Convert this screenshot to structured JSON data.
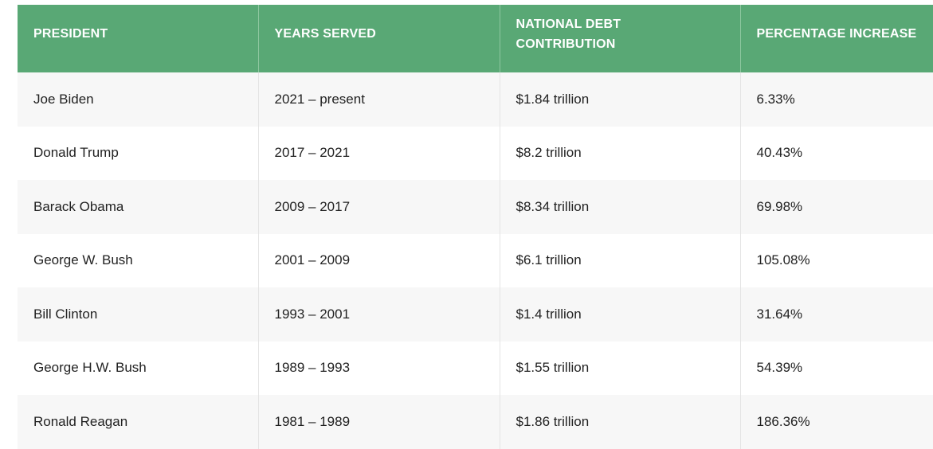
{
  "accent_color": "#59a875",
  "table": {
    "headers": {
      "president": "PRESIDENT",
      "years": "YEARS SERVED",
      "debt": "NATIONAL DEBT CONTRIBUTION",
      "pct": "PERCENTAGE INCREASE"
    },
    "rows": [
      {
        "president": "Joe Biden",
        "years": "2021 – present",
        "debt": "$1.84 trillion",
        "pct": "6.33%"
      },
      {
        "president": "Donald Trump",
        "years": "2017 – 2021",
        "debt": "$8.2 trillion",
        "pct": "40.43%"
      },
      {
        "president": "Barack Obama",
        "years": "2009 – 2017",
        "debt": "$8.34 trillion",
        "pct": "69.98%"
      },
      {
        "president": "George W. Bush",
        "years": "2001 – 2009",
        "debt": "$6.1 trillion",
        "pct": "105.08%"
      },
      {
        "president": "Bill Clinton",
        "years": "1993 – 2001",
        "debt": "$1.4 trillion",
        "pct": "31.64%"
      },
      {
        "president": "George H.W. Bush",
        "years": "1989 – 1993",
        "debt": "$1.55 trillion",
        "pct": "54.39%"
      },
      {
        "president": "Ronald Reagan",
        "years": "1981 – 1989",
        "debt": "$1.86 trillion",
        "pct": "186.36%"
      }
    ]
  }
}
